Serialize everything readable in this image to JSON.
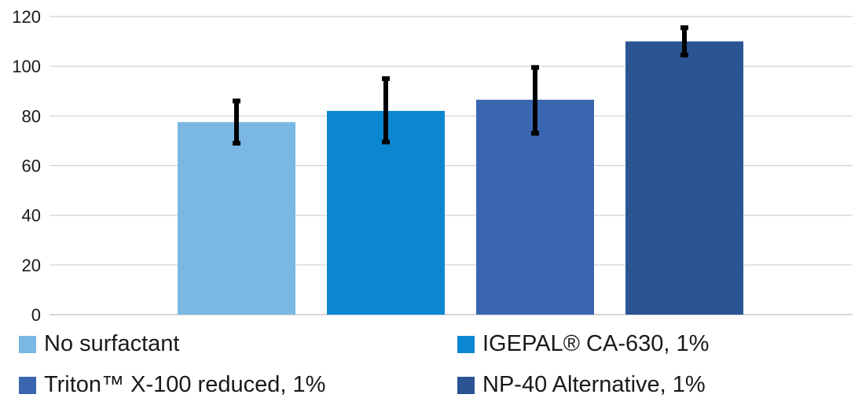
{
  "chart_data": {
    "type": "bar",
    "title": "",
    "xlabel": "",
    "ylabel": "",
    "ylim": [
      0,
      120
    ],
    "yticks": [
      0,
      20,
      40,
      60,
      80,
      100,
      120
    ],
    "grid": true,
    "legend_position": "bottom",
    "series": [
      {
        "name": "No surfactant",
        "value": 77.5,
        "error_low": 69,
        "error_high": 86,
        "color": "#7ab8e3"
      },
      {
        "name": "IGEPAL® CA-630, 1%",
        "value": 82,
        "error_low": 69.5,
        "error_high": 95,
        "color": "#0a87d0"
      },
      {
        "name": "Triton™ X-100 reduced, 1%",
        "value": 86.5,
        "error_low": 73,
        "error_high": 99.5,
        "color": "#3a66b0"
      },
      {
        "name": "NP-40 Alternative, 1%",
        "value": 110,
        "error_low": 104.5,
        "error_high": 115.5,
        "color": "#2b5592"
      }
    ]
  }
}
